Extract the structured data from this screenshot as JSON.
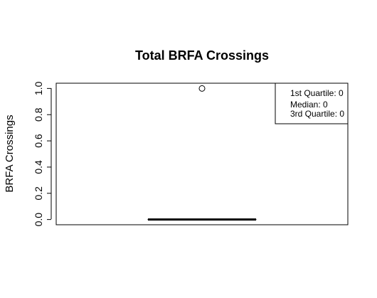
{
  "chart_data": {
    "type": "boxplot",
    "title": "Total BRFA Crossings",
    "xlabel": "",
    "ylabel": "BRFA Crossings",
    "ylim": [
      -0.04,
      1.04
    ],
    "yticks": [
      0.0,
      0.2,
      0.4,
      0.6,
      0.8,
      1.0
    ],
    "ytick_labels": [
      "0.0",
      "0.2",
      "0.4",
      "0.6",
      "0.8",
      "1.0"
    ],
    "grid": false,
    "box": {
      "min": 0,
      "q1": 0,
      "median": 0,
      "q3": 0,
      "max": 0,
      "outliers": [
        1
      ]
    },
    "legend": {
      "placement": "top-right",
      "entries": [
        "1st Quartile: 0",
        "Median: 0",
        "3rd Quartile: 0"
      ]
    }
  }
}
